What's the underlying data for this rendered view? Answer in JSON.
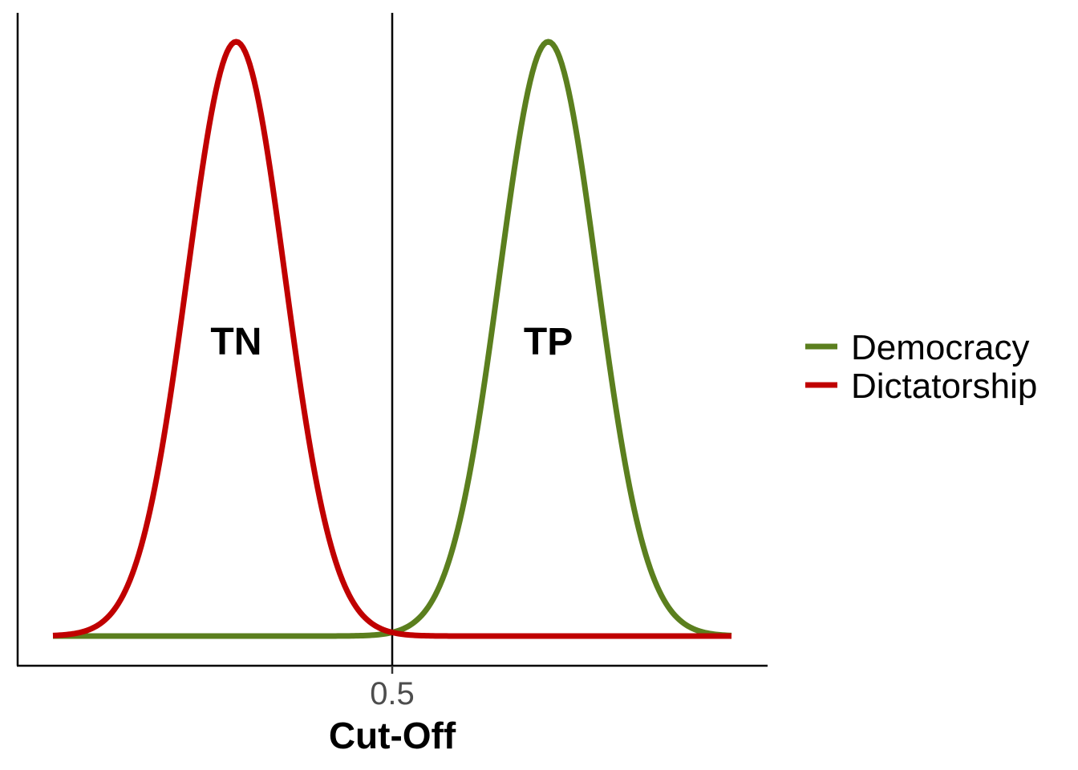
{
  "chart_data": {
    "type": "line",
    "xlabel": "Cut-Off",
    "ylabel": "",
    "xlim": [
      0,
      1
    ],
    "x_ticks": [
      {
        "value": 0.5,
        "label": "0.5"
      }
    ],
    "cutoff": 0.5,
    "grid": false,
    "legend_position": "right",
    "series": [
      {
        "name": "Democracy",
        "color": "#5b7f1e",
        "mean": 0.73,
        "sd": 0.072
      },
      {
        "name": "Dictatorship",
        "color": "#c00000",
        "mean": 0.27,
        "sd": 0.072
      }
    ],
    "annotations": [
      {
        "text": "TN",
        "x": 0.27
      },
      {
        "text": "TP",
        "x": 0.73
      }
    ]
  }
}
